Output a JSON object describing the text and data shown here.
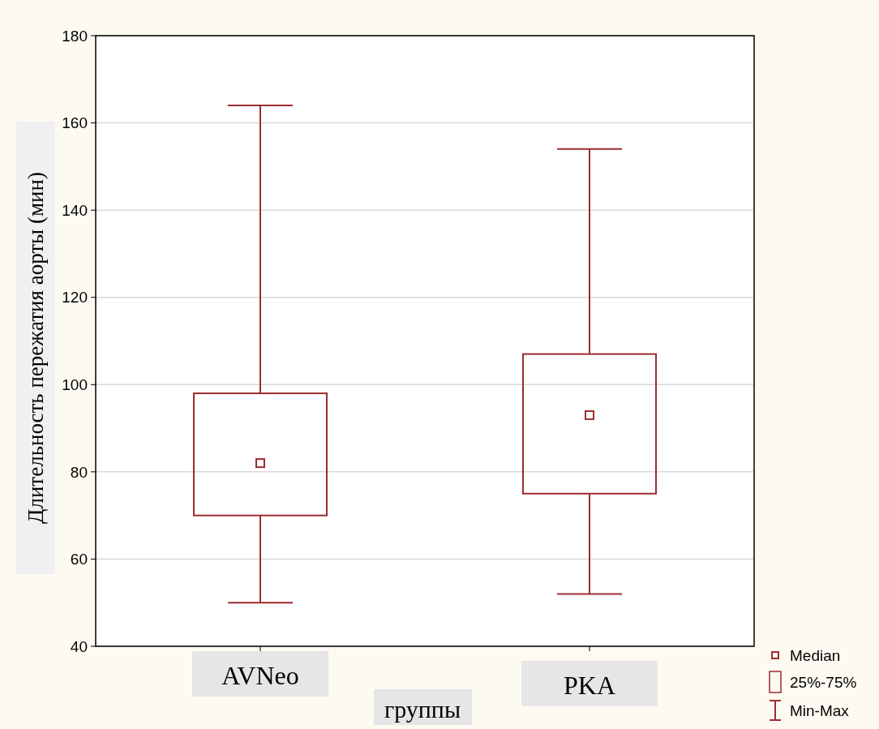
{
  "chart_data": {
    "type": "box",
    "categories": [
      "AVNeo",
      "PKA"
    ],
    "xlabel": "группы",
    "ylabel": "Длительность пережатия аорты (мин)",
    "boxes": [
      {
        "low": 50,
        "q1": 70,
        "median": 82,
        "q3": 98,
        "high": 164
      },
      {
        "low": 52,
        "q1": 75,
        "median": 93,
        "q3": 107,
        "high": 154
      }
    ],
    "color": "#9b2d30",
    "ylim": [
      40,
      180
    ],
    "yticks": [
      40,
      60,
      80,
      100,
      120,
      140,
      160,
      180
    ],
    "grid": "y",
    "annotations": [
      "Median",
      "25%-75%",
      "Min-Max"
    ]
  }
}
